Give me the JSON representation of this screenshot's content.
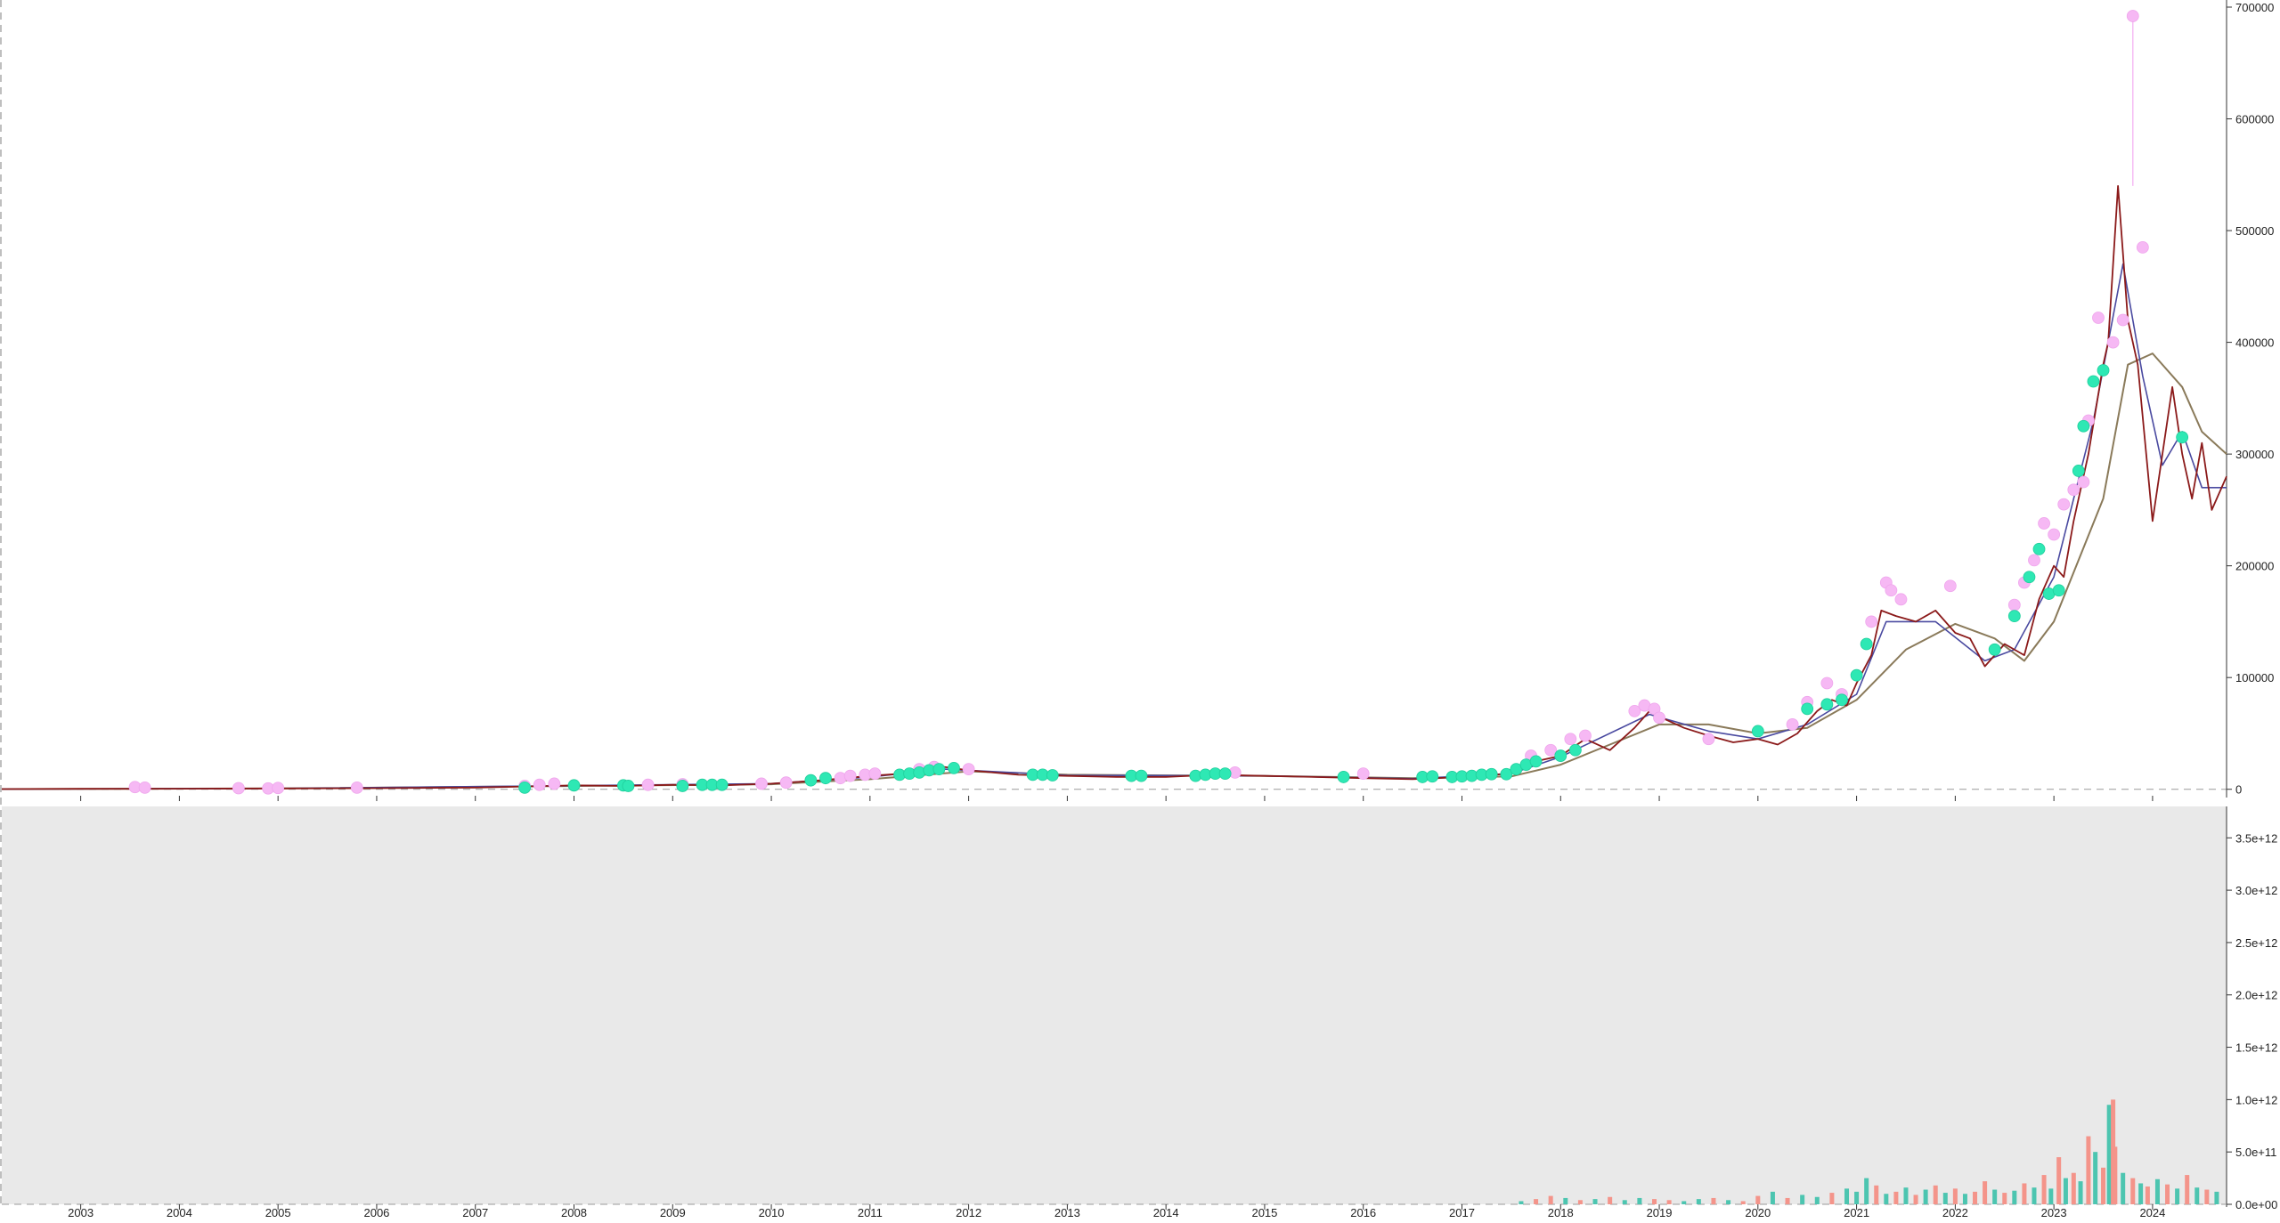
{
  "chart_data": [
    {
      "type": "line",
      "panel": "price",
      "title": "",
      "xlabel": "",
      "ylabel": "",
      "xlim": [
        2002.2,
        2024.75
      ],
      "ylim": [
        -5000,
        700000
      ],
      "grid": false,
      "y_tick_labels": [
        "0",
        "100000",
        "200000",
        "300000",
        "400000",
        "500000",
        "600000",
        "700000"
      ],
      "y_tick_values": [
        0,
        100000,
        200000,
        300000,
        400000,
        500000,
        600000,
        700000
      ],
      "x_tick_labels": [
        "2003",
        "2004",
        "2005",
        "2006",
        "2007",
        "2008",
        "2009",
        "2010",
        "2011",
        "2012",
        "2013",
        "2014",
        "2015",
        "2016",
        "2017",
        "2018",
        "2019",
        "2020",
        "2021",
        "2022",
        "2023",
        "2024"
      ],
      "x_tick_values": [
        2003,
        2004,
        2005,
        2006,
        2007,
        2008,
        2009,
        2010,
        2011,
        2012,
        2013,
        2014,
        2015,
        2016,
        2017,
        2018,
        2019,
        2020,
        2021,
        2022,
        2023,
        2024
      ],
      "colors": {
        "price": "#8b1a1a",
        "fast_ma": "#4a4aa0",
        "slow_ma": "#8a7a5a",
        "sell_marker": "#f6b8f4",
        "buy_marker": "#2ee8b4",
        "baseline": "#999999"
      },
      "series": [
        {
          "role": "price",
          "x": [
            2002.2,
            2003.0,
            2004.0,
            2005.0,
            2006.0,
            2007.0,
            2007.5,
            2008.0,
            2008.5,
            2009.0,
            2009.5,
            2010.0,
            2010.5,
            2011.0,
            2011.5,
            2011.75,
            2012.0,
            2012.5,
            2013.0,
            2013.5,
            2014.0,
            2014.5,
            2015.0,
            2015.5,
            2016.0,
            2016.5,
            2016.75,
            2017.0,
            2017.5,
            2017.75,
            2018.0,
            2018.25,
            2018.5,
            2018.75,
            2018.9,
            2019.0,
            2019.25,
            2019.5,
            2019.75,
            2020.0,
            2020.2,
            2020.4,
            2020.6,
            2020.75,
            2020.9,
            2021.0,
            2021.15,
            2021.25,
            2021.4,
            2021.6,
            2021.8,
            2022.0,
            2022.15,
            2022.3,
            2022.5,
            2022.7,
            2022.85,
            2023.0,
            2023.1,
            2023.2,
            2023.35,
            2023.5,
            2023.55,
            2023.65,
            2023.75,
            2023.85,
            2024.0,
            2024.1,
            2024.2,
            2024.3,
            2024.4,
            2024.5,
            2024.6,
            2024.75
          ],
          "y": [
            200,
            400,
            500,
            700,
            1000,
            1500,
            2500,
            3500,
            3000,
            4000,
            3500,
            5000,
            8000,
            12000,
            15000,
            20000,
            17000,
            13000,
            12000,
            11000,
            11000,
            13000,
            12000,
            11000,
            10000,
            9000,
            10000,
            11000,
            14000,
            25000,
            30000,
            45000,
            35000,
            55000,
            70000,
            65000,
            55000,
            48000,
            42000,
            45000,
            40000,
            50000,
            70000,
            80000,
            75000,
            95000,
            120000,
            160000,
            155000,
            150000,
            160000,
            140000,
            135000,
            110000,
            130000,
            120000,
            170000,
            200000,
            190000,
            240000,
            300000,
            380000,
            400000,
            540000,
            420000,
            380000,
            240000,
            300000,
            360000,
            300000,
            260000,
            310000,
            250000,
            280000
          ]
        },
        {
          "role": "fast_ma",
          "x": [
            2002.2,
            2005.0,
            2008.0,
            2010.0,
            2011.0,
            2011.75,
            2013.0,
            2015.0,
            2016.5,
            2017.5,
            2018.0,
            2018.9,
            2019.5,
            2020.0,
            2020.5,
            2021.0,
            2021.3,
            2021.8,
            2022.3,
            2022.6,
            2023.0,
            2023.4,
            2023.7,
            2023.9,
            2024.1,
            2024.3,
            2024.5,
            2024.75
          ],
          "y": [
            200,
            700,
            3200,
            5000,
            11000,
            18000,
            12500,
            12000,
            9500,
            14000,
            29000,
            67000,
            52000,
            45000,
            58000,
            85000,
            150000,
            150000,
            115000,
            125000,
            190000,
            330000,
            470000,
            370000,
            290000,
            320000,
            270000,
            270000
          ]
        },
        {
          "role": "slow_ma",
          "x": [
            2002.2,
            2005.0,
            2008.0,
            2010.0,
            2011.0,
            2012.0,
            2013.0,
            2015.0,
            2016.5,
            2017.5,
            2018.0,
            2018.5,
            2019.0,
            2019.5,
            2020.0,
            2020.5,
            2021.0,
            2021.5,
            2022.0,
            2022.4,
            2022.7,
            2023.0,
            2023.5,
            2023.75,
            2024.0,
            2024.3,
            2024.5,
            2024.75
          ],
          "y": [
            200,
            700,
            3000,
            4500,
            9000,
            16000,
            13000,
            12000,
            10000,
            11500,
            22000,
            40000,
            58000,
            58000,
            50000,
            55000,
            80000,
            125000,
            148000,
            135000,
            115000,
            150000,
            260000,
            380000,
            390000,
            360000,
            320000,
            300000
          ]
        }
      ],
      "sell_signals": {
        "x": [
          2003.55,
          2003.65,
          2004.6,
          2004.9,
          2005.0,
          2005.8,
          2007.5,
          2007.65,
          2007.8,
          2008.75,
          2009.1,
          2009.9,
          2010.15,
          2010.7,
          2010.8,
          2010.95,
          2011.05,
          2011.5,
          2011.65,
          2012.0,
          2014.7,
          2016.0,
          2017.7,
          2017.9,
          2018.1,
          2018.25,
          2018.75,
          2018.85,
          2018.95,
          2019.0,
          2019.5,
          2020.35,
          2020.5,
          2020.7,
          2020.85,
          2021.15,
          2021.3,
          2021.35,
          2021.45,
          2021.95,
          2022.6,
          2022.7,
          2022.8,
          2022.9,
          2023.0,
          2023.1,
          2023.2,
          2023.3,
          2023.35,
          2023.45,
          2023.6,
          2023.7,
          2023.8,
          2023.9
        ],
        "y": [
          2000,
          1500,
          1000,
          800,
          1200,
          1500,
          3000,
          4000,
          5000,
          4000,
          4500,
          5000,
          6000,
          10000,
          12000,
          13000,
          14000,
          18000,
          20000,
          18000,
          15000,
          14000,
          30000,
          35000,
          45000,
          48000,
          70000,
          75000,
          72000,
          64000,
          45000,
          58000,
          78000,
          95000,
          85000,
          150000,
          185000,
          178000,
          170000,
          182000,
          165000,
          185000,
          205000,
          238000,
          228000,
          255000,
          268000,
          275000,
          330000,
          422000,
          400000,
          420000,
          692000,
          485000
        ]
      },
      "buy_signals": {
        "x": [
          2007.5,
          2008.0,
          2008.5,
          2008.55,
          2009.1,
          2009.3,
          2009.4,
          2009.5,
          2010.4,
          2010.55,
          2011.3,
          2011.4,
          2011.5,
          2011.6,
          2011.7,
          2011.85,
          2012.65,
          2012.75,
          2012.85,
          2013.65,
          2013.75,
          2014.3,
          2014.4,
          2014.5,
          2014.6,
          2015.8,
          2016.6,
          2016.7,
          2016.9,
          2017.0,
          2017.1,
          2017.2,
          2017.3,
          2017.45,
          2017.55,
          2017.65,
          2017.75,
          2018.0,
          2018.15,
          2020.0,
          2020.5,
          2020.7,
          2020.85,
          2021.0,
          2021.1,
          2022.4,
          2022.6,
          2022.75,
          2022.85,
          2022.95,
          2023.05,
          2023.25,
          2023.3,
          2023.4,
          2023.5,
          2024.3
        ],
        "y": [
          1500,
          3500,
          3500,
          3000,
          3000,
          4000,
          4000,
          4000,
          8000,
          10000,
          13000,
          14000,
          15000,
          17000,
          18000,
          19000,
          13000,
          13000,
          12500,
          12000,
          12000,
          12000,
          13000,
          14000,
          14000,
          11000,
          11000,
          11500,
          11000,
          11500,
          12000,
          13000,
          13500,
          13500,
          18000,
          22000,
          25000,
          30000,
          35000,
          52000,
          72000,
          76000,
          80000,
          102000,
          130000,
          125000,
          155000,
          190000,
          215000,
          175000,
          178000,
          285000,
          325000,
          365000,
          375000,
          315000
        ]
      }
    },
    {
      "type": "bar",
      "panel": "volume",
      "title": "",
      "xlabel": "",
      "ylabel": "",
      "xlim": [
        2002.2,
        2024.75
      ],
      "ylim": [
        0,
        3800000000000.0
      ],
      "grid": false,
      "y_tick_labels": [
        "0.0e+00",
        "5.0e+11",
        "1.0e+12",
        "1.5e+12",
        "2.0e+12",
        "2.5e+12",
        "3.0e+12",
        "3.5e+12"
      ],
      "y_tick_values": [
        0,
        500000000000,
        1000000000000,
        1500000000000,
        2000000000000,
        2500000000000,
        3000000000000,
        3500000000000
      ],
      "x_tick_labels": [
        "2003",
        "2004",
        "2005",
        "2006",
        "2007",
        "2008",
        "2009",
        "2010",
        "2011",
        "2012",
        "2013",
        "2014",
        "2015",
        "2016",
        "2017",
        "2018",
        "2019",
        "2020",
        "2021",
        "2022",
        "2023",
        "2024"
      ],
      "x_tick_values": [
        2003,
        2004,
        2005,
        2006,
        2007,
        2008,
        2009,
        2010,
        2011,
        2012,
        2013,
        2014,
        2015,
        2016,
        2017,
        2018,
        2019,
        2020,
        2021,
        2022,
        2023,
        2024
      ],
      "colors": {
        "up": "#4cc5b0",
        "down": "#f4948a",
        "background": "#e9e9e9"
      },
      "series": [
        {
          "name": "",
          "x": [
            2017.6,
            2017.75,
            2017.9,
            2018.05,
            2018.2,
            2018.35,
            2018.5,
            2018.65,
            2018.8,
            2018.95,
            2019.1,
            2019.25,
            2019.4,
            2019.55,
            2019.7,
            2019.85,
            2020.0,
            2020.15,
            2020.3,
            2020.45,
            2020.6,
            2020.75,
            2020.9,
            2021.0,
            2021.1,
            2021.2,
            2021.3,
            2021.4,
            2021.5,
            2021.6,
            2021.7,
            2021.8,
            2021.9,
            2022.0,
            2022.1,
            2022.2,
            2022.3,
            2022.4,
            2022.5,
            2022.6,
            2022.7,
            2022.8,
            2022.9,
            2022.97,
            2023.05,
            2023.12,
            2023.2,
            2023.27,
            2023.35,
            2023.42,
            2023.5,
            2023.56,
            2023.62,
            2023.7,
            2023.8,
            2023.88,
            2023.95,
            2024.05,
            2024.15,
            2024.25,
            2024.35,
            2024.45,
            2024.55,
            2024.65
          ],
          "values": [
            30000000000.0,
            50000000000.0,
            80000000000.0,
            60000000000.0,
            40000000000.0,
            50000000000.0,
            70000000000.0,
            40000000000.0,
            60000000000.0,
            50000000000.0,
            40000000000.0,
            30000000000.0,
            50000000000.0,
            60000000000.0,
            40000000000.0,
            30000000000.0,
            80000000000.0,
            120000000000.0,
            60000000000.0,
            90000000000.0,
            70000000000.0,
            110000000000.0,
            150000000000.0,
            120000000000.0,
            250000000000.0,
            180000000000.0,
            100000000000.0,
            120000000000.0,
            160000000000.0,
            90000000000.0,
            140000000000.0,
            180000000000.0,
            110000000000.0,
            150000000000.0,
            100000000000.0,
            120000000000.0,
            220000000000.0,
            140000000000.0,
            110000000000.0,
            130000000000.0,
            200000000000.0,
            160000000000.0,
            280000000000.0,
            150000000000.0,
            450000000000.0,
            250000000000.0,
            300000000000.0,
            220000000000.0,
            650000000000.0,
            500000000000.0,
            350000000000.0,
            950000000000.0,
            550000000000.0,
            300000000000.0,
            250000000000.0,
            200000000000.0,
            170000000000.0,
            240000000000.0,
            190000000000.0,
            150000000000.0,
            280000000000.0,
            160000000000.0,
            140000000000.0,
            120000000000.0
          ],
          "direction": [
            "up",
            "down",
            "down",
            "up",
            "down",
            "up",
            "down",
            "up",
            "up",
            "down",
            "down",
            "up",
            "up",
            "down",
            "up",
            "down",
            "down",
            "up",
            "down",
            "up",
            "up",
            "down",
            "up",
            "up",
            "up",
            "down",
            "up",
            "down",
            "up",
            "down",
            "up",
            "down",
            "up",
            "down",
            "up",
            "down",
            "down",
            "up",
            "down",
            "up",
            "down",
            "up",
            "down",
            "up",
            "down",
            "up",
            "down",
            "up",
            "down",
            "up",
            "down",
            "up",
            "down",
            "up",
            "down",
            "up",
            "down",
            "up",
            "down",
            "up",
            "down",
            "up",
            "down",
            "up"
          ]
        },
        {
          "name": "",
          "x": [
            2023.6
          ],
          "values": [
            1000000000000.0
          ],
          "direction": [
            "down"
          ]
        }
      ]
    }
  ]
}
